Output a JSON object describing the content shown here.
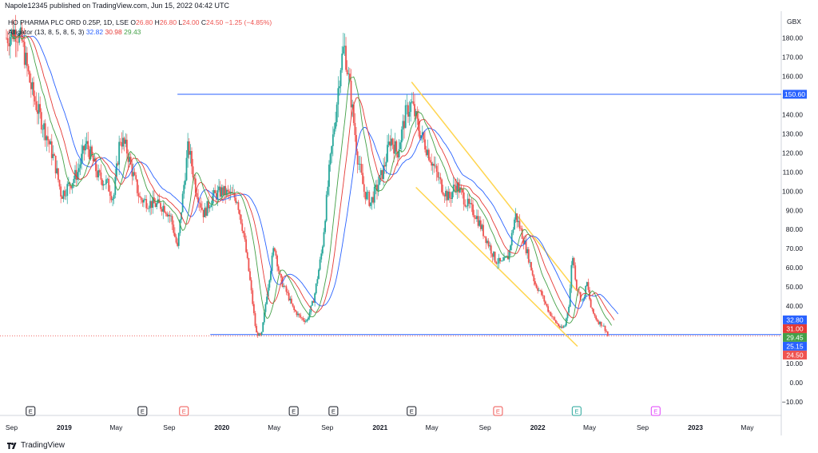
{
  "header": {
    "text": "Napole12345 published on TradingView.com, Jun 15, 2022 04:42 UTC"
  },
  "legend": {
    "symbol": "HO PHARMA PLC ORD 0.25P, 1D, LSE",
    "ohlc": {
      "o_label": "O",
      "o": "26.80",
      "h_label": "H",
      "h": "26.80",
      "l_label": "L",
      "l": "24.00",
      "c_label": "C",
      "c": "24.50",
      "change": "−1.25 (−4.85%)"
    },
    "indicator": {
      "name": "Alligator (13, 8, 5, 8, 5, 3)",
      "jaw": "32.82",
      "teeth": "30.98",
      "lips": "29.43"
    }
  },
  "currency": "GBX",
  "footer": {
    "brand": "TradingView"
  },
  "colors": {
    "up": "#26a69a",
    "down": "#ef5350",
    "jaw": "#2962ff",
    "teeth": "#e53935",
    "lips": "#43a047",
    "hline": "#2962ff",
    "channel": "#ffd54f",
    "axis_text": "#131722"
  },
  "chart_data": {
    "type": "candlestick",
    "title": "HO PHARMA PLC ORD 0.25P, 1D, LSE",
    "ylim": [
      -15,
      190
    ],
    "y_ticks": [
      -10,
      0,
      10,
      20,
      30,
      40,
      50,
      60,
      70,
      80,
      90,
      100,
      110,
      120,
      130,
      140,
      150,
      160,
      170,
      180
    ],
    "x_ticks": [
      "Sep",
      "2019",
      "May",
      "Sep",
      "2020",
      "May",
      "Sep",
      "2021",
      "May",
      "Sep",
      "2022",
      "May",
      "Sep",
      "2023",
      "May"
    ],
    "price_labels": [
      {
        "value": 150.6,
        "text": "150.60",
        "color": "#2962ff"
      },
      {
        "value": 32.8,
        "text": "32.80",
        "color": "#2962ff"
      },
      {
        "value": 31.0,
        "text": "31.00",
        "color": "#e53935"
      },
      {
        "value": 29.45,
        "text": "29.45",
        "color": "#43a047"
      },
      {
        "value": 25.15,
        "text": "25.15",
        "color": "#2962ff"
      },
      {
        "value": 24.5,
        "text": "24.50",
        "color": "#ef5350"
      }
    ],
    "horizontal_lines": [
      {
        "value": 150.6,
        "from": "2019-09-20"
      },
      {
        "value": 25.15,
        "from": "2019-12-05"
      }
    ],
    "channel": {
      "upper": [
        [
          "2021-03-15",
          157
        ],
        [
          "2022-04-01",
          48
        ]
      ],
      "lower": [
        [
          "2021-03-25",
          102
        ],
        [
          "2022-04-03",
          19
        ]
      ]
    },
    "earnings_markers": [
      {
        "date": "2018-10-15",
        "type": "E",
        "color": "#131722"
      },
      {
        "date": "2019-07-01",
        "type": "E",
        "color": "#131722"
      },
      {
        "date": "2019-10-05",
        "type": "E",
        "color": "#ef5350"
      },
      {
        "date": "2020-06-15",
        "type": "E",
        "color": "#131722"
      },
      {
        "date": "2020-09-15",
        "type": "E",
        "color": "#131722"
      },
      {
        "date": "2021-03-15",
        "type": "E",
        "color": "#131722"
      },
      {
        "date": "2021-10-01",
        "type": "E",
        "color": "#ef5350"
      },
      {
        "date": "2022-04-01",
        "type": "E",
        "color": "#26a69a"
      },
      {
        "date": "2022-10-01",
        "type": "E",
        "color": "#e040fb"
      }
    ],
    "price_path": [
      [
        "2018-08-20",
        180
      ],
      [
        "2018-09-10",
        184
      ],
      [
        "2018-09-25",
        178
      ],
      [
        "2018-10-15",
        155
      ],
      [
        "2018-11-01",
        142
      ],
      [
        "2018-11-20",
        130
      ],
      [
        "2018-12-10",
        115
      ],
      [
        "2018-12-25",
        98
      ],
      [
        "2019-01-15",
        104
      ],
      [
        "2019-02-01",
        110
      ],
      [
        "2019-02-20",
        125
      ],
      [
        "2019-03-05",
        118
      ],
      [
        "2019-03-20",
        108
      ],
      [
        "2019-04-10",
        104
      ],
      [
        "2019-04-25",
        96
      ],
      [
        "2019-05-10",
        128
      ],
      [
        "2019-05-25",
        122
      ],
      [
        "2019-06-10",
        108
      ],
      [
        "2019-06-25",
        96
      ],
      [
        "2019-07-15",
        94
      ],
      [
        "2019-08-01",
        93
      ],
      [
        "2019-08-20",
        92
      ],
      [
        "2019-09-05",
        86
      ],
      [
        "2019-09-20",
        70
      ],
      [
        "2019-10-01",
        95
      ],
      [
        "2019-10-15",
        124
      ],
      [
        "2019-11-01",
        102
      ],
      [
        "2019-11-20",
        88
      ],
      [
        "2019-12-10",
        97
      ],
      [
        "2020-01-01",
        100
      ],
      [
        "2020-01-20",
        98
      ],
      [
        "2020-02-05",
        96
      ],
      [
        "2020-02-20",
        78
      ],
      [
        "2020-03-05",
        55
      ],
      [
        "2020-03-20",
        26
      ],
      [
        "2020-04-01",
        24
      ],
      [
        "2020-04-15",
        48
      ],
      [
        "2020-05-01",
        72
      ],
      [
        "2020-05-15",
        54
      ],
      [
        "2020-06-01",
        46
      ],
      [
        "2020-06-15",
        38
      ],
      [
        "2020-07-01",
        34
      ],
      [
        "2020-07-15",
        32
      ],
      [
        "2020-08-01",
        44
      ],
      [
        "2020-08-20",
        70
      ],
      [
        "2020-09-05",
        110
      ],
      [
        "2020-09-20",
        140
      ],
      [
        "2020-10-01",
        165
      ],
      [
        "2020-10-10",
        176
      ],
      [
        "2020-10-25",
        150
      ],
      [
        "2020-11-10",
        118
      ],
      [
        "2020-11-25",
        100
      ],
      [
        "2020-12-10",
        94
      ],
      [
        "2020-12-25",
        102
      ],
      [
        "2021-01-10",
        112
      ],
      [
        "2021-01-25",
        128
      ],
      [
        "2021-02-10",
        120
      ],
      [
        "2021-03-01",
        140
      ],
      [
        "2021-03-15",
        146
      ],
      [
        "2021-04-01",
        132
      ],
      [
        "2021-04-20",
        122
      ],
      [
        "2021-05-10",
        110
      ],
      [
        "2021-05-25",
        102
      ],
      [
        "2021-06-10",
        96
      ],
      [
        "2021-06-25",
        104
      ],
      [
        "2021-07-10",
        98
      ],
      [
        "2021-07-25",
        92
      ],
      [
        "2021-08-10",
        88
      ],
      [
        "2021-08-25",
        80
      ],
      [
        "2021-09-10",
        72
      ],
      [
        "2021-09-25",
        64
      ],
      [
        "2021-10-10",
        62
      ],
      [
        "2021-10-25",
        66
      ],
      [
        "2021-11-10",
        88
      ],
      [
        "2021-11-25",
        78
      ],
      [
        "2021-12-10",
        66
      ],
      [
        "2021-12-25",
        52
      ],
      [
        "2022-01-10",
        46
      ],
      [
        "2022-01-25",
        38
      ],
      [
        "2022-02-10",
        32
      ],
      [
        "2022-02-25",
        28
      ],
      [
        "2022-03-05",
        30
      ],
      [
        "2022-03-15",
        42
      ],
      [
        "2022-03-22",
        68
      ],
      [
        "2022-04-01",
        50
      ],
      [
        "2022-04-15",
        42
      ],
      [
        "2022-04-25",
        52
      ],
      [
        "2022-05-05",
        38
      ],
      [
        "2022-05-20",
        32
      ],
      [
        "2022-06-01",
        30
      ],
      [
        "2022-06-14",
        24.5
      ]
    ]
  }
}
